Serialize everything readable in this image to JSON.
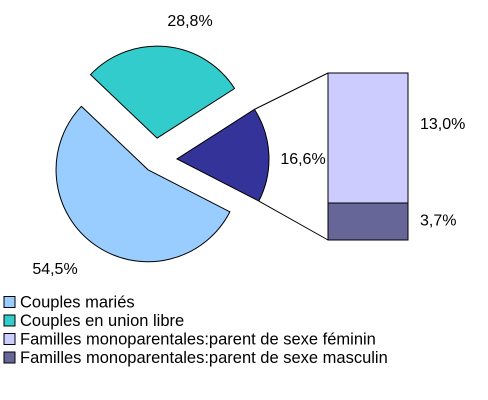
{
  "chart_data": [
    {
      "type": "pie",
      "categories": [
        "Couples mariés",
        "Couples en union libre",
        null
      ],
      "values": [
        54.5,
        28.8,
        16.6
      ],
      "value_labels": [
        "54,5%",
        "28,8%",
        "16,6%"
      ],
      "colors": [
        "#99ccff",
        "#33cccc",
        "#333399"
      ]
    },
    {
      "type": "bar",
      "categories": [
        "Familles monoparentales:parent de sexe féminin",
        "Familles monoparentales:parent de sexe masculin"
      ],
      "values": [
        13.0,
        3.7
      ],
      "value_labels": [
        "13,0%",
        "3,7%"
      ],
      "colors": [
        "#ccccff",
        "#666699"
      ]
    }
  ]
}
